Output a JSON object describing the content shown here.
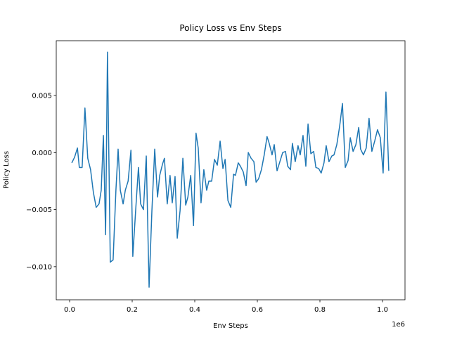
{
  "chart_data": {
    "type": "line",
    "title": "Policy Loss vs Env Steps",
    "x_label": "Env Steps",
    "y_label": "Policy Loss",
    "x_offset_label": "1e6",
    "color": "#1f77b4",
    "x": [
      0.007,
      0.016,
      0.025,
      0.031,
      0.04,
      0.049,
      0.058,
      0.067,
      0.076,
      0.085,
      0.094,
      0.101,
      0.108,
      0.115,
      0.121,
      0.13,
      0.139,
      0.148,
      0.155,
      0.162,
      0.171,
      0.178,
      0.187,
      0.196,
      0.202,
      0.211,
      0.22,
      0.227,
      0.236,
      0.245,
      0.254,
      0.263,
      0.272,
      0.281,
      0.288,
      0.297,
      0.303,
      0.312,
      0.321,
      0.328,
      0.337,
      0.344,
      0.353,
      0.362,
      0.371,
      0.378,
      0.387,
      0.396,
      0.404,
      0.411,
      0.42,
      0.429,
      0.438,
      0.445,
      0.454,
      0.463,
      0.472,
      0.481,
      0.49,
      0.497,
      0.506,
      0.515,
      0.524,
      0.53,
      0.539,
      0.546,
      0.555,
      0.564,
      0.571,
      0.58,
      0.589,
      0.596,
      0.604,
      0.613,
      0.622,
      0.631,
      0.638,
      0.647,
      0.654,
      0.663,
      0.672,
      0.681,
      0.69,
      0.697,
      0.706,
      0.712,
      0.721,
      0.73,
      0.737,
      0.746,
      0.755,
      0.762,
      0.771,
      0.78,
      0.787,
      0.796,
      0.804,
      0.813,
      0.82,
      0.829,
      0.838,
      0.845,
      0.854,
      0.863,
      0.872,
      0.881,
      0.89,
      0.897,
      0.906,
      0.915,
      0.924,
      0.93,
      0.939,
      0.948,
      0.957,
      0.966,
      0.975,
      0.984,
      0.993,
      1.002,
      1.011,
      1.02
    ],
    "values": [
      -0.0009,
      -0.0004,
      0.0004,
      -0.0013,
      -0.0013,
      0.0039,
      -0.0005,
      -0.0015,
      -0.0035,
      -0.0048,
      -0.0045,
      -0.0033,
      0.0015,
      -0.0072,
      0.0088,
      -0.0096,
      -0.0094,
      -0.0033,
      0.0003,
      -0.0033,
      -0.0045,
      -0.0033,
      -0.0025,
      0.0002,
      -0.0091,
      -0.0051,
      -0.0013,
      -0.0045,
      -0.005,
      -0.0003,
      -0.0118,
      -0.0051,
      0.0003,
      -0.0039,
      -0.002,
      -0.001,
      -0.0005,
      -0.0045,
      -0.002,
      -0.0044,
      -0.0021,
      -0.0075,
      -0.0051,
      -0.0005,
      -0.0046,
      -0.0039,
      -0.002,
      -0.0064,
      0.0017,
      0.0004,
      -0.0044,
      -0.0015,
      -0.0033,
      -0.0025,
      -0.0025,
      -0.0006,
      -0.0011,
      0.001,
      -0.0014,
      -0.0006,
      -0.0042,
      -0.0048,
      -0.0019,
      -0.002,
      -0.0009,
      -0.0012,
      -0.0017,
      -0.0029,
      0.0,
      -0.0005,
      -0.0008,
      -0.0026,
      -0.0023,
      -0.0015,
      -0.0002,
      0.0014,
      0.0008,
      -0.0002,
      0.0007,
      -0.0016,
      -0.0008,
      0.0,
      0.0001,
      -0.0012,
      -0.0015,
      0.0008,
      -0.0008,
      0.0006,
      -0.0002,
      0.0015,
      -0.0012,
      0.0025,
      -0.0001,
      0.0001,
      -0.0013,
      -0.0014,
      -0.0018,
      -0.0009,
      0.0006,
      -0.0008,
      -0.0003,
      -0.0002,
      0.0007,
      0.0023,
      0.0043,
      -0.0013,
      -0.0007,
      0.0013,
      0.0001,
      0.0007,
      0.0022,
      0.0003,
      -0.0002,
      0.0004,
      0.003,
      0.0001,
      0.001,
      0.002,
      0.0013,
      -0.0018,
      0.0053,
      -0.0016
    ],
    "xlim": [
      -0.0427,
      1.0719
    ],
    "ylim": [
      -0.0129,
      0.0098
    ],
    "xticks": [
      {
        "value": 0,
        "label": "0.0"
      },
      0.2,
      0.4,
      0.6,
      0.8,
      {
        "value": 1,
        "label": "1.0"
      }
    ],
    "yticks": [
      {
        "value": -0.01,
        "label": "−0.010"
      },
      {
        "value": -0.005,
        "label": "−0.005"
      },
      {
        "value": 0,
        "label": "0.000"
      },
      0.005
    ]
  }
}
